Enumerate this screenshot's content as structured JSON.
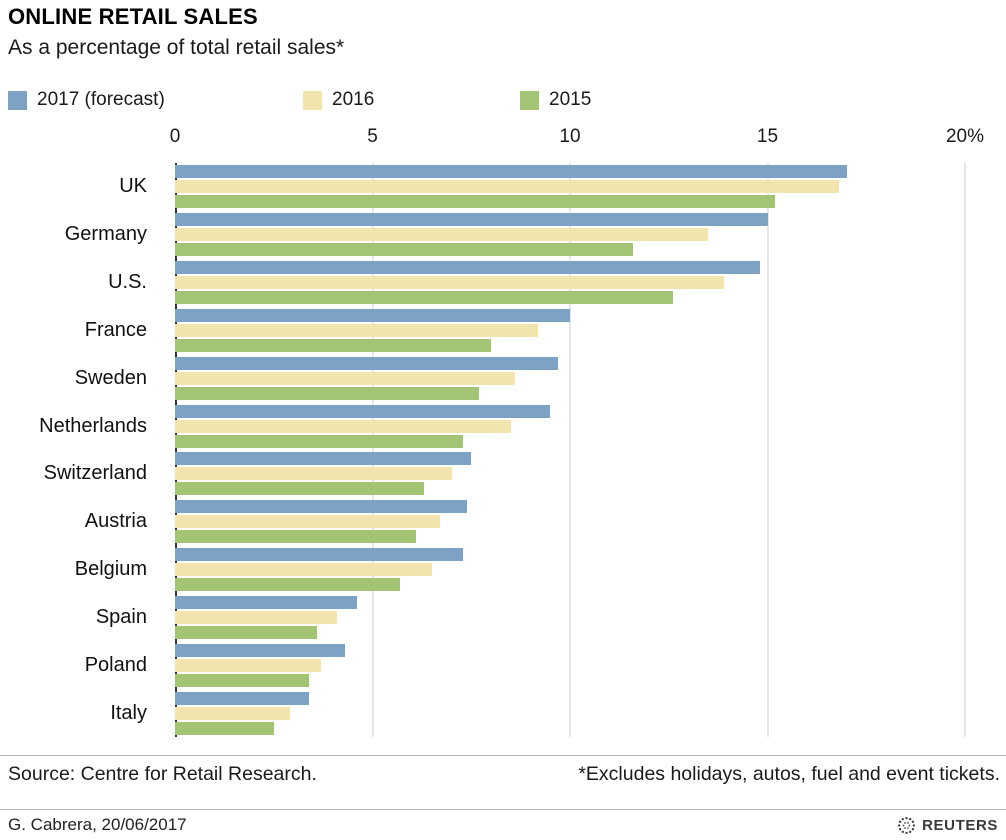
{
  "header": {
    "title": "ONLINE RETAIL SALES",
    "subtitle": "As a percentage of total retail sales*"
  },
  "legend": [
    {
      "label": "2017 (forecast)",
      "color": "#7ea2c4"
    },
    {
      "label": "2016",
      "color": "#f2e4ad"
    },
    {
      "label": "2015",
      "color": "#a3c475"
    }
  ],
  "chart_data": {
    "type": "bar",
    "orientation": "horizontal",
    "title": "ONLINE RETAIL SALES",
    "subtitle": "As a percentage of total retail sales*",
    "xlim": [
      0,
      20
    ],
    "ticks": [
      0,
      5,
      10,
      15,
      20
    ],
    "tick_labels": [
      "0",
      "5",
      "10",
      "15",
      "20%"
    ],
    "grid": true,
    "categories": [
      "UK",
      "Germany",
      "U.S.",
      "France",
      "Sweden",
      "Netherlands",
      "Switzerland",
      "Austria",
      "Belgium",
      "Spain",
      "Poland",
      "Italy"
    ],
    "series": [
      {
        "name": "2017 (forecast)",
        "color": "#7ea2c4",
        "values": [
          17.0,
          15.0,
          14.8,
          10.0,
          9.7,
          9.5,
          7.5,
          7.4,
          7.3,
          4.6,
          4.3,
          3.4
        ]
      },
      {
        "name": "2016",
        "color": "#f2e4ad",
        "values": [
          16.8,
          13.5,
          13.9,
          9.2,
          8.6,
          8.5,
          7.0,
          6.7,
          6.5,
          4.1,
          3.7,
          2.9
        ]
      },
      {
        "name": "2015",
        "color": "#a3c475",
        "values": [
          15.2,
          11.6,
          12.6,
          8.0,
          7.7,
          7.3,
          6.3,
          6.1,
          5.7,
          3.6,
          3.4,
          2.5
        ]
      }
    ]
  },
  "footer": {
    "source": "Source: Centre for Retail Research.",
    "footnote": "*Excludes holidays, autos, fuel and event tickets."
  },
  "bottombar": {
    "credit": "G. Cabrera,  20/06/2017",
    "brand": "REUTERS"
  }
}
